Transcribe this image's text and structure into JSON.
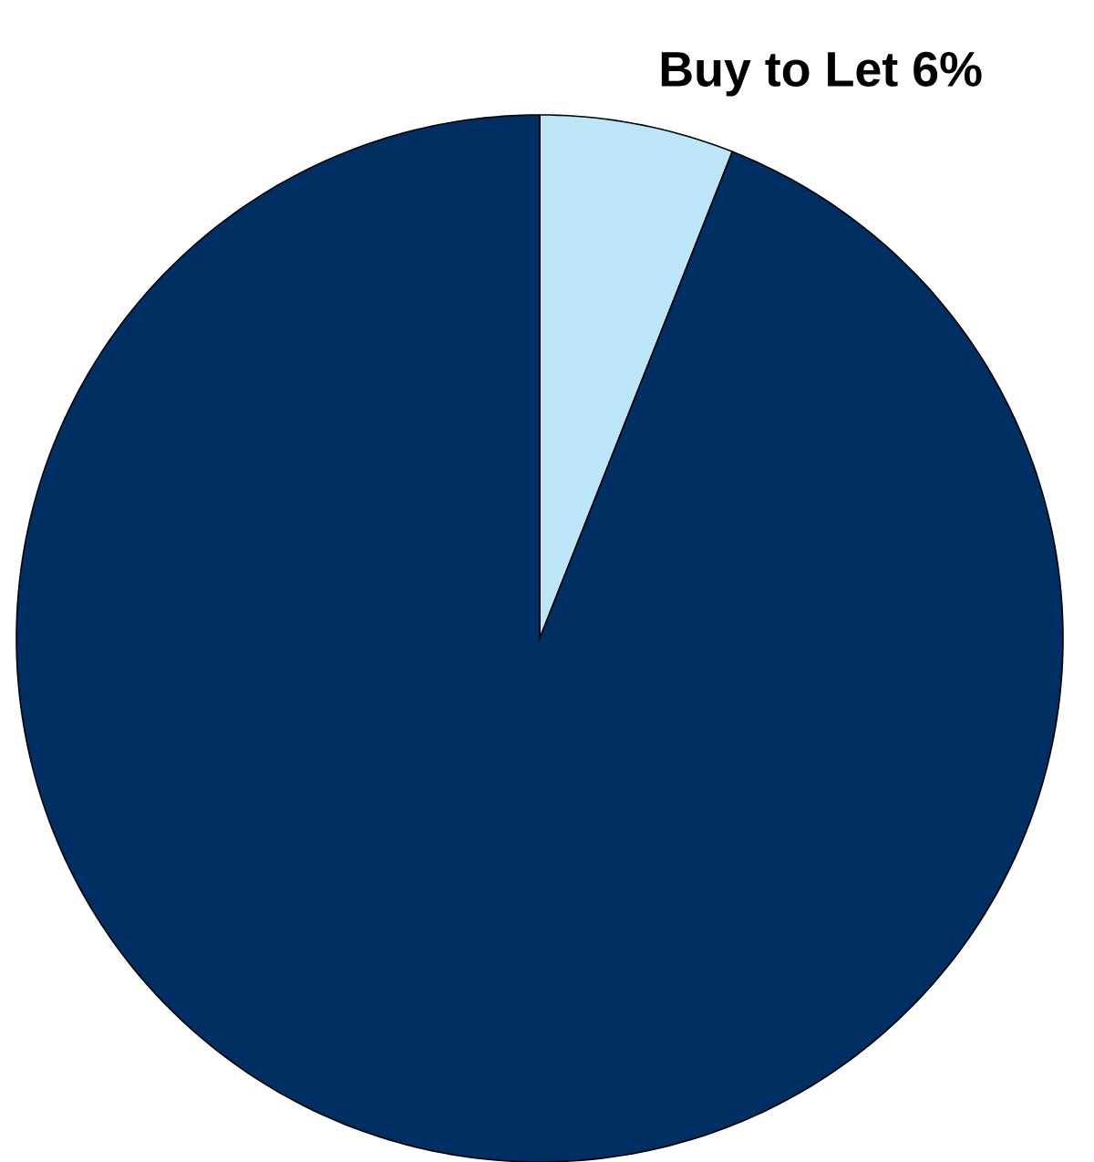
{
  "chart_data": {
    "type": "pie",
    "categories": [
      "Buy to Let",
      null
    ],
    "values": [
      6,
      94
    ],
    "value_labels": [
      "6%",
      null
    ],
    "colors": [
      "#bde5f8",
      "#003063"
    ]
  }
}
